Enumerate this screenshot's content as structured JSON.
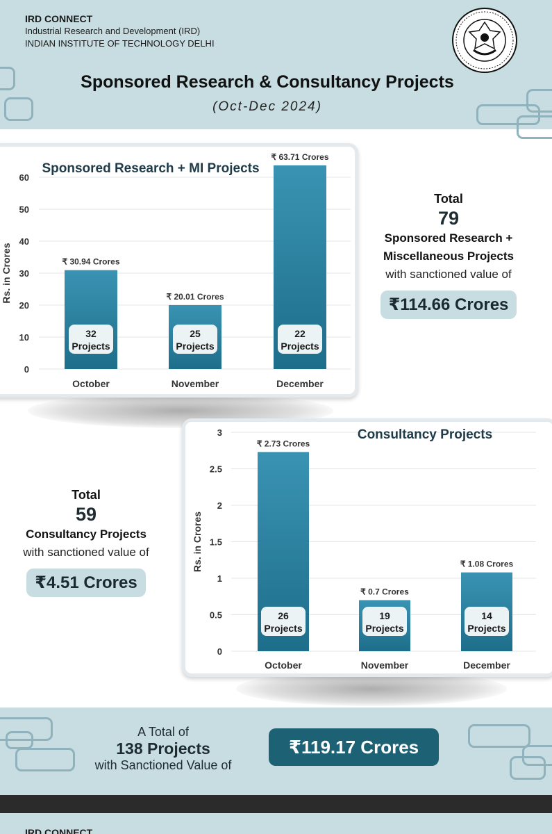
{
  "header": {
    "brand": "IRD CONNECT",
    "line1": "Industrial Research and Development (IRD)",
    "line2": "INDIAN INSTITUTE OF TECHNOLOGY DELHI",
    "title": "Sponsored Research & Consultancy Projects",
    "subtitle": "(Oct-Dec 2024)"
  },
  "colors": {
    "bar_top": "#3a93b3",
    "bar_bottom": "#1d6e8a",
    "header_bg": "#c7dde2",
    "pill_dark": "#1d6174"
  },
  "chart_data": [
    {
      "type": "bar",
      "title": "Sponsored Research + MI Projects",
      "ylabel": "Rs. in Crores",
      "xlabel": "",
      "categories": [
        "October",
        "November",
        "December"
      ],
      "values": [
        30.94,
        20.01,
        63.71
      ],
      "value_labels": [
        "₹ 30.94 Crores",
        "₹ 20.01 Crores",
        "₹ 63.71 Crores"
      ],
      "project_counts": [
        "32",
        "25",
        "22"
      ],
      "project_word": "Projects",
      "yticks": [
        "0",
        "10",
        "20",
        "30",
        "40",
        "50",
        "60"
      ],
      "ylim": [
        0,
        60
      ],
      "grid": true
    },
    {
      "type": "bar",
      "title": "Consultancy Projects",
      "ylabel": "Rs. in Crores",
      "xlabel": "",
      "categories": [
        "October",
        "November",
        "December"
      ],
      "values": [
        2.73,
        0.7,
        1.08
      ],
      "value_labels": [
        "₹ 2.73 Crores",
        "₹ 0.7 Crores",
        "₹ 1.08 Crores"
      ],
      "project_counts": [
        "26",
        "19",
        "14"
      ],
      "project_word": "Projects",
      "yticks": [
        "0",
        "0.5",
        "1",
        "1.5",
        "2",
        "2.5",
        "3"
      ],
      "ylim": [
        0,
        3
      ],
      "grid": true
    }
  ],
  "summary_sponsored": {
    "total_label": "Total",
    "count": "79",
    "line1": "Sponsored Research +",
    "line2": "Miscellaneous Projects",
    "line3": "with sanctioned value of",
    "value": "₹114.66 Crores"
  },
  "summary_consultancy": {
    "total_label": "Total",
    "count": "59",
    "line1": "Consultancy Projects",
    "line2": "with sanctioned value of",
    "value": "₹4.51 Crores"
  },
  "banner": {
    "line1": "A Total of",
    "line2": "138  Projects",
    "line3": "with Sanctioned Value of",
    "value": "₹119.17 Crores"
  },
  "next_page": {
    "brand": "IRD CONNECT"
  }
}
